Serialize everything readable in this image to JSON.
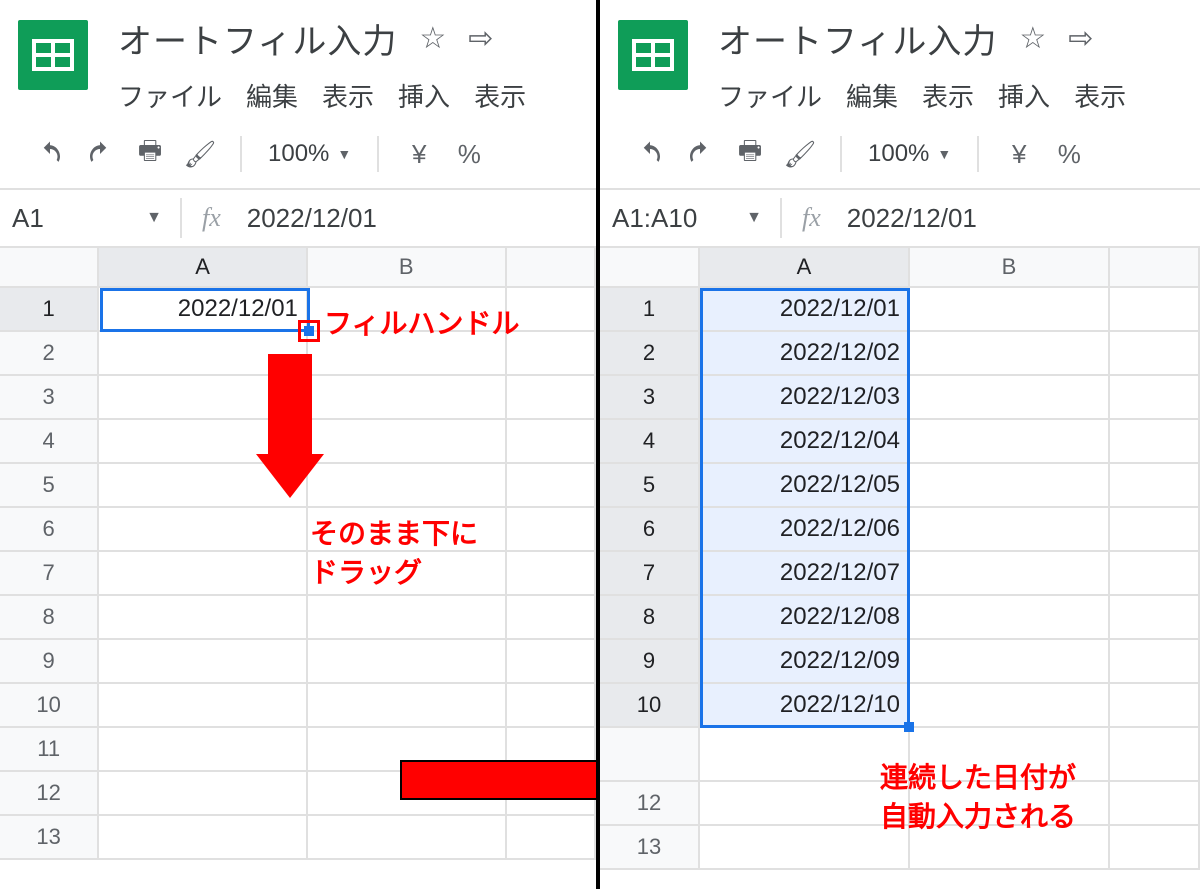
{
  "left": {
    "doc_title": "オートフィル入力",
    "menus": [
      "ファイル",
      "編集",
      "表示",
      "挿入",
      "表示"
    ],
    "zoom": "100%",
    "currency": "¥",
    "percent": "%",
    "namebox": "A1",
    "fx_value": "2022/12/01",
    "columns": [
      "A",
      "B"
    ],
    "row_count": 13,
    "cells_a": [
      "2022/12/01",
      "",
      "",
      "",
      "",
      "",
      "",
      "",
      "",
      "",
      "",
      "",
      ""
    ],
    "selection": {
      "top_row": 1,
      "bottom_row": 1,
      "col": "A"
    },
    "annotations": {
      "fill_handle_label": "フィルハンドル",
      "drag_label_line1": "そのまま下に",
      "drag_label_line2": "ドラッグ"
    },
    "colors": {
      "accent": "#1a73e8",
      "anno": "#ff0000",
      "logo": "#0f9d58"
    }
  },
  "right": {
    "doc_title": "オートフィル入力",
    "menus": [
      "ファイル",
      "編集",
      "表示",
      "挿入",
      "表示"
    ],
    "zoom": "100%",
    "currency": "¥",
    "percent": "%",
    "namebox": "A1:A10",
    "fx_value": "2022/12/01",
    "columns": [
      "A",
      "B"
    ],
    "row_count": 13,
    "cells_a": [
      "2022/12/01",
      "2022/12/02",
      "2022/12/03",
      "2022/12/04",
      "2022/12/05",
      "2022/12/06",
      "2022/12/07",
      "2022/12/08",
      "2022/12/09",
      "2022/12/10",
      "",
      "",
      ""
    ],
    "selection": {
      "top_row": 1,
      "bottom_row": 10,
      "col": "A"
    },
    "annotations": {
      "result_label_line1": "連続した日付が",
      "result_label_line2": "自動入力される"
    }
  }
}
